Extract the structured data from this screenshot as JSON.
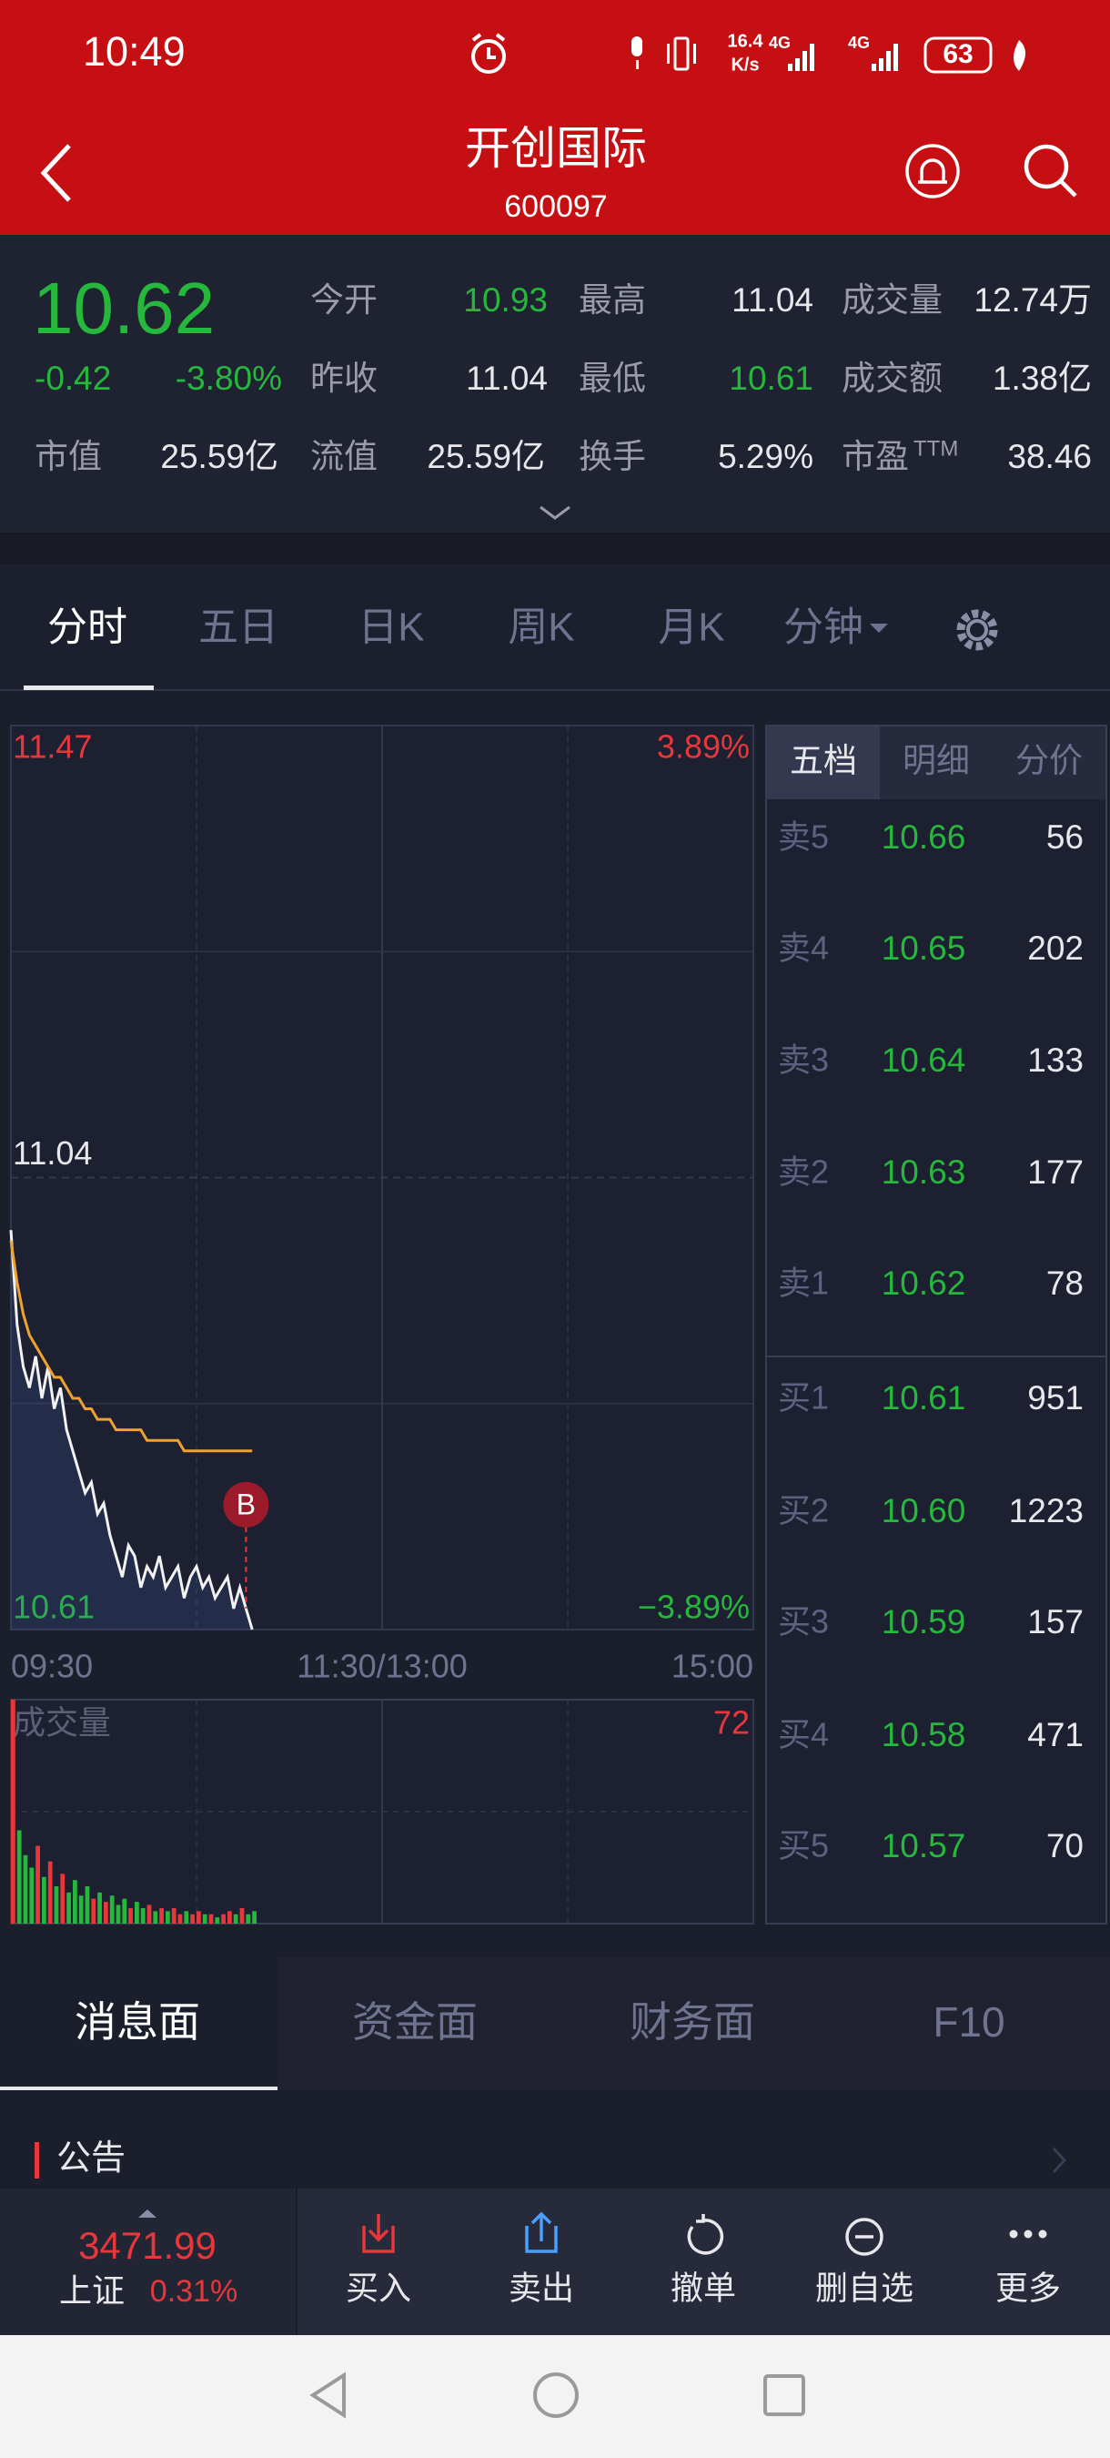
{
  "status_bar": {
    "time": "10:49",
    "net_speed": "16.4",
    "net_unit": "K/s",
    "net1": "4G",
    "net2": "4G",
    "battery": "63"
  },
  "header": {
    "title": "开创国际",
    "code": "600097"
  },
  "quote": {
    "price": "10.62",
    "change": "-0.42",
    "change_pct": "-3.80%",
    "fields": [
      {
        "label": "今开",
        "value": "10.93"
      },
      {
        "label": "最高",
        "value": "11.04"
      },
      {
        "label": "成交量",
        "value": "12.74万"
      },
      {
        "label": "昨收",
        "value": "11.04"
      },
      {
        "label": "最低",
        "value": "10.61"
      },
      {
        "label": "成交额",
        "value": "1.38亿"
      },
      {
        "label": "市值",
        "value": "25.59亿"
      },
      {
        "label": "流值",
        "value": "25.59亿"
      },
      {
        "label": "换手",
        "value": "5.29%"
      },
      {
        "label": "市盈",
        "label_sup": "TTM",
        "value": "38.46"
      }
    ]
  },
  "tabs": [
    "分时",
    "五日",
    "日K",
    "周K",
    "月K",
    "分钟"
  ],
  "chart_data": [
    {
      "type": "line",
      "x": [
        0,
        2,
        4,
        6,
        8,
        10,
        12,
        14,
        16,
        18,
        20,
        22,
        24,
        26,
        28,
        30,
        32,
        34,
        36,
        38,
        40,
        42,
        44,
        46,
        48,
        50,
        52,
        54,
        56,
        58,
        60,
        62,
        64,
        66,
        68,
        70,
        72,
        74,
        76,
        78
      ],
      "xlim": [
        0,
        240
      ],
      "xticks": [
        {
          "value": 0,
          "label": "09:30"
        },
        {
          "value": 120,
          "label": "11:30/13:00"
        },
        {
          "value": 240,
          "label": "15:00"
        }
      ],
      "ylim": [
        10.61,
        11.47
      ],
      "yticks": [
        10.61,
        11.04,
        11.47
      ],
      "y2lim": [
        -3.89,
        3.89
      ],
      "y2ticks": [
        {
          "value": -3.89,
          "label": "−3.89%"
        },
        {
          "value": 3.89,
          "label": "3.89%"
        }
      ],
      "grid": true,
      "series": [
        {
          "color": "#f2f2f2",
          "values": [
            10.99,
            10.9,
            10.86,
            10.84,
            10.87,
            10.83,
            10.86,
            10.82,
            10.84,
            10.8,
            10.78,
            10.76,
            10.74,
            10.75,
            10.72,
            10.73,
            10.7,
            10.68,
            10.66,
            10.69,
            10.68,
            10.65,
            10.67,
            10.66,
            10.68,
            10.65,
            10.66,
            10.67,
            10.64,
            10.66,
            10.67,
            10.65,
            10.66,
            10.64,
            10.65,
            10.66,
            10.63,
            10.65,
            10.63,
            10.61
          ]
        },
        {
          "color": "#f0a22e",
          "values": [
            10.98,
            10.94,
            10.91,
            10.89,
            10.88,
            10.87,
            10.86,
            10.85,
            10.85,
            10.84,
            10.83,
            10.83,
            10.82,
            10.82,
            10.81,
            10.81,
            10.81,
            10.8,
            10.8,
            10.8,
            10.8,
            10.8,
            10.79,
            10.79,
            10.79,
            10.79,
            10.79,
            10.79,
            10.78,
            10.78,
            10.78,
            10.78,
            10.78,
            10.78,
            10.78,
            10.78,
            10.78,
            10.78,
            10.78,
            10.78
          ]
        }
      ],
      "markers": [
        {
          "x": 76,
          "label": "B"
        }
      ]
    },
    {
      "type": "bar",
      "title": "成交量",
      "x": [
        0,
        2,
        4,
        6,
        8,
        10,
        12,
        14,
        16,
        18,
        20,
        22,
        24,
        26,
        28,
        30,
        32,
        34,
        36,
        38,
        40,
        42,
        44,
        46,
        48,
        50,
        52,
        54,
        56,
        58,
        60,
        62,
        64,
        66,
        68,
        70,
        72,
        74,
        76,
        78
      ],
      "values": [
        72,
        30,
        22,
        18,
        25,
        15,
        20,
        12,
        16,
        10,
        14,
        9,
        12,
        8,
        10,
        7,
        9,
        6,
        8,
        5,
        7,
        5,
        6,
        4,
        5,
        4,
        5,
        3,
        4,
        3,
        4,
        3,
        3,
        2,
        3,
        4,
        3,
        5,
        3,
        4
      ],
      "xlim": [
        0,
        240
      ],
      "ylim": [
        0,
        72
      ],
      "yticks": [
        72
      ],
      "up_color": "#e8373a",
      "down_color": "#25b83c"
    }
  ],
  "order_book": {
    "tabs": [
      "五档",
      "明细",
      "分价"
    ],
    "asks": [
      {
        "label": "卖5",
        "price": "10.66",
        "volume": "56"
      },
      {
        "label": "卖4",
        "price": "10.65",
        "volume": "202"
      },
      {
        "label": "卖3",
        "price": "10.64",
        "volume": "133"
      },
      {
        "label": "卖2",
        "price": "10.63",
        "volume": "177"
      },
      {
        "label": "卖1",
        "price": "10.62",
        "volume": "78"
      }
    ],
    "bids": [
      {
        "label": "买1",
        "price": "10.61",
        "volume": "951"
      },
      {
        "label": "买2",
        "price": "10.60",
        "volume": "1223"
      },
      {
        "label": "买3",
        "price": "10.59",
        "volume": "157"
      },
      {
        "label": "买4",
        "price": "10.58",
        "volume": "471"
      },
      {
        "label": "买5",
        "price": "10.57",
        "volume": "70"
      }
    ]
  },
  "news_tabs": [
    "消息面",
    "资金面",
    "财务面",
    "F10"
  ],
  "section_title": "公告",
  "index": {
    "value": "3471.99",
    "name": "上证",
    "change_pct": "0.31%"
  },
  "toolbar": [
    "买入",
    "卖出",
    "撤单",
    "删自选",
    "更多"
  ]
}
